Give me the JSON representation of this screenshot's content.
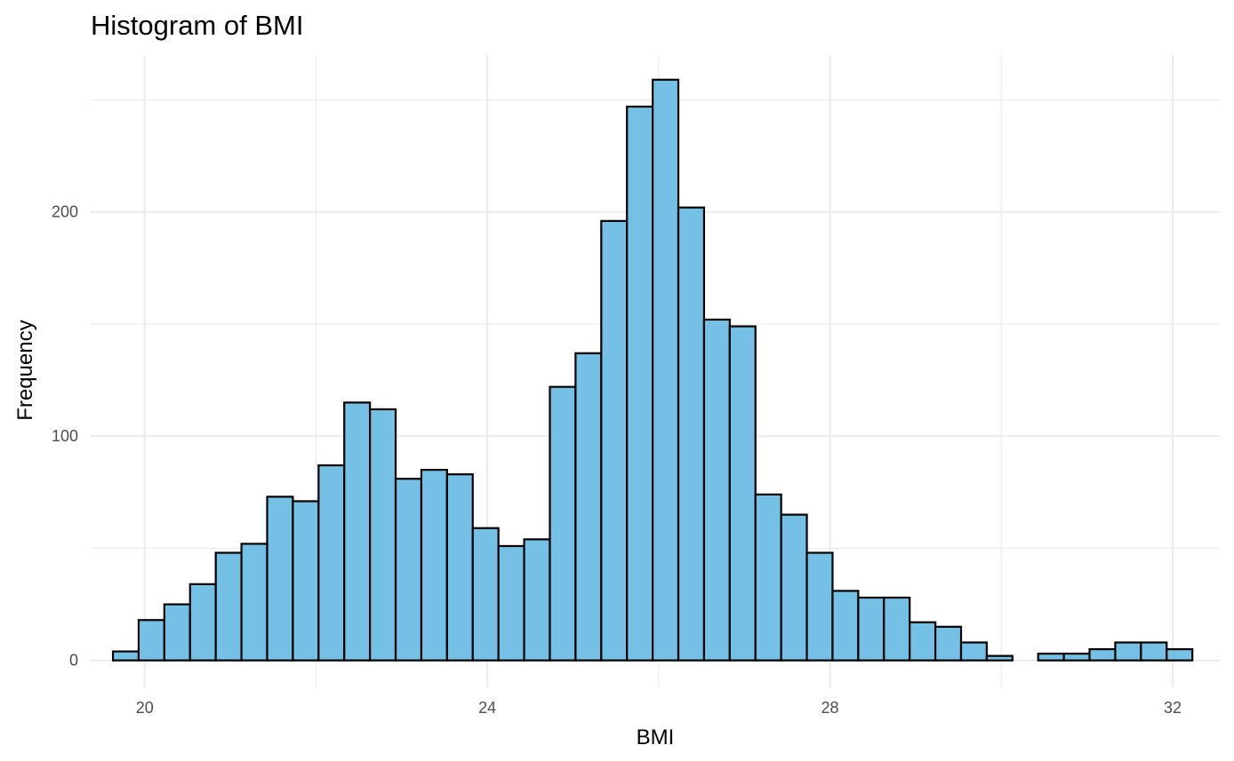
{
  "chart_data": {
    "type": "bar",
    "title": "Histogram of BMI",
    "xlabel": "BMI",
    "ylabel": "Frequency",
    "bar_color": "#74c1e5",
    "bar_outline_color": "#000000",
    "grid": true,
    "xlim": [
      19.37,
      32.55
    ],
    "ylim": [
      -12,
      270
    ],
    "x_ticks": [
      20,
      24,
      28,
      32
    ],
    "x_minor_ticks": [
      22,
      26,
      30
    ],
    "y_ticks": [
      0,
      100,
      200
    ],
    "y_minor_ticks": [
      50,
      150,
      250
    ],
    "bin_start": 19.63,
    "bin_width": 0.3,
    "values": [
      4,
      18,
      25,
      34,
      48,
      52,
      73,
      71,
      87,
      115,
      112,
      81,
      85,
      83,
      59,
      51,
      54,
      122,
      137,
      196,
      247,
      259,
      202,
      152,
      149,
      74,
      65,
      48,
      31,
      28,
      28,
      17,
      15,
      8,
      2,
      0,
      3,
      3,
      5,
      8,
      8,
      5
    ]
  }
}
